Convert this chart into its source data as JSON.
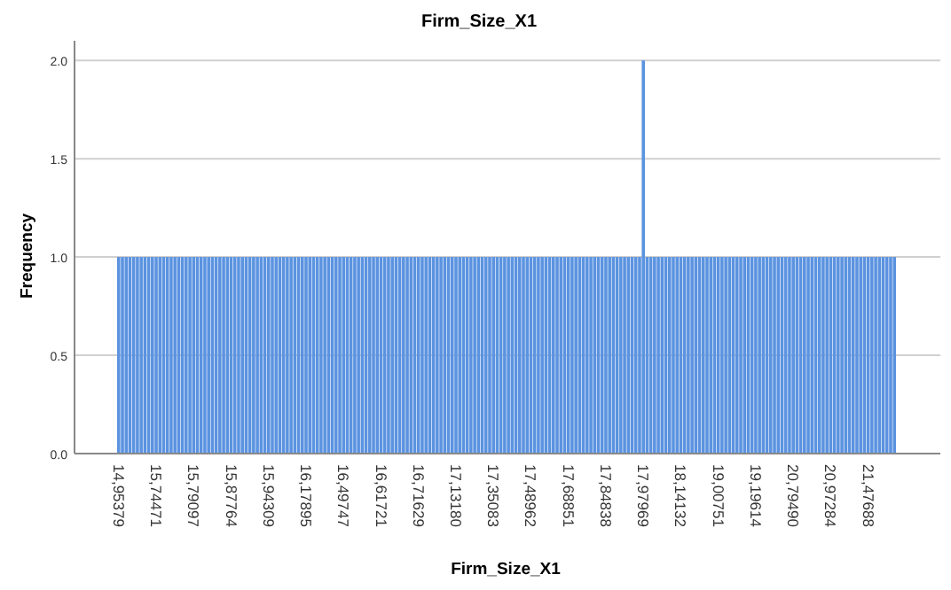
{
  "chart_data": {
    "type": "bar",
    "title": "Firm_Size_X1",
    "xlabel": "Firm_Size_X1",
    "ylabel": "Frequency",
    "color": "#5b93e0",
    "grid": "y",
    "ylim": [
      0,
      2.1
    ],
    "yticks": [
      {
        "value": 0,
        "label": "0.0"
      },
      {
        "value": 0.5,
        "label": "0.5"
      },
      {
        "value": 1,
        "label": "1.0"
      },
      {
        "value": 1.5,
        "label": "1.5"
      },
      {
        "value": 2,
        "label": "2.0"
      }
    ],
    "categories": [
      "14,95379",
      null,
      null,
      null,
      null,
      null,
      null,
      null,
      null,
      null,
      "15,74471",
      null,
      null,
      null,
      null,
      null,
      null,
      null,
      null,
      null,
      "15,79097",
      null,
      null,
      null,
      null,
      null,
      null,
      null,
      null,
      null,
      "15,87764",
      null,
      null,
      null,
      null,
      null,
      null,
      null,
      null,
      null,
      "15,94309",
      null,
      null,
      null,
      null,
      null,
      null,
      null,
      null,
      null,
      "16,17895",
      null,
      null,
      null,
      null,
      null,
      null,
      null,
      null,
      null,
      "16,49747",
      null,
      null,
      null,
      null,
      null,
      null,
      null,
      null,
      null,
      "16,61721",
      null,
      null,
      null,
      null,
      null,
      null,
      null,
      null,
      null,
      "16,71629",
      null,
      null,
      null,
      null,
      null,
      null,
      null,
      null,
      null,
      "17,13180",
      null,
      null,
      null,
      null,
      null,
      null,
      null,
      null,
      null,
      "17,35083",
      null,
      null,
      null,
      null,
      null,
      null,
      null,
      null,
      null,
      "17,48962",
      null,
      null,
      null,
      null,
      null,
      null,
      null,
      null,
      null,
      "17,68851",
      null,
      null,
      null,
      null,
      null,
      null,
      null,
      null,
      null,
      "17,84838",
      null,
      null,
      null,
      null,
      null,
      null,
      null,
      null,
      null,
      "17,97969",
      null,
      null,
      null,
      null,
      null,
      null,
      null,
      null,
      null,
      "18,14132",
      null,
      null,
      null,
      null,
      null,
      null,
      null,
      null,
      null,
      "19,00751",
      null,
      null,
      null,
      null,
      null,
      null,
      null,
      null,
      null,
      "19,19614",
      null,
      null,
      null,
      null,
      null,
      null,
      null,
      null,
      null,
      "20,79490",
      null,
      null,
      null,
      null,
      null,
      null,
      null,
      null,
      null,
      "20,97284",
      null,
      null,
      null,
      null,
      null,
      null,
      null,
      null,
      null,
      "21,47688",
      null,
      null,
      null,
      null,
      null,
      null,
      null
    ],
    "values": [
      1,
      1,
      1,
      1,
      1,
      1,
      1,
      1,
      1,
      1,
      1,
      1,
      1,
      1,
      1,
      1,
      1,
      1,
      1,
      1,
      1,
      1,
      1,
      1,
      1,
      1,
      1,
      1,
      1,
      1,
      1,
      1,
      1,
      1,
      1,
      1,
      1,
      1,
      1,
      1,
      1,
      1,
      1,
      1,
      1,
      1,
      1,
      1,
      1,
      1,
      1,
      1,
      1,
      1,
      1,
      1,
      1,
      1,
      1,
      1,
      1,
      1,
      1,
      1,
      1,
      1,
      1,
      1,
      1,
      1,
      1,
      1,
      1,
      1,
      1,
      1,
      1,
      1,
      1,
      1,
      1,
      1,
      1,
      1,
      1,
      1,
      1,
      1,
      1,
      1,
      1,
      1,
      1,
      1,
      1,
      1,
      1,
      1,
      1,
      1,
      1,
      1,
      1,
      1,
      1,
      1,
      1,
      1,
      1,
      1,
      1,
      1,
      1,
      1,
      1,
      1,
      1,
      1,
      1,
      1,
      1,
      1,
      1,
      1,
      1,
      1,
      1,
      1,
      1,
      1,
      1,
      1,
      1,
      1,
      1,
      1,
      1,
      1,
      1,
      1,
      2,
      1,
      1,
      1,
      1,
      1,
      1,
      1,
      1,
      1,
      1,
      1,
      1,
      1,
      1,
      1,
      1,
      1,
      1,
      1,
      1,
      1,
      1,
      1,
      1,
      1,
      1,
      1,
      1,
      1,
      1,
      1,
      1,
      1,
      1,
      1,
      1,
      1,
      1,
      1,
      1,
      1,
      1,
      1,
      1,
      1,
      1,
      1,
      1,
      1,
      1,
      1,
      1,
      1,
      1,
      1,
      1,
      1,
      1,
      1,
      1,
      1,
      1,
      1,
      1,
      1,
      1,
      1
    ]
  }
}
